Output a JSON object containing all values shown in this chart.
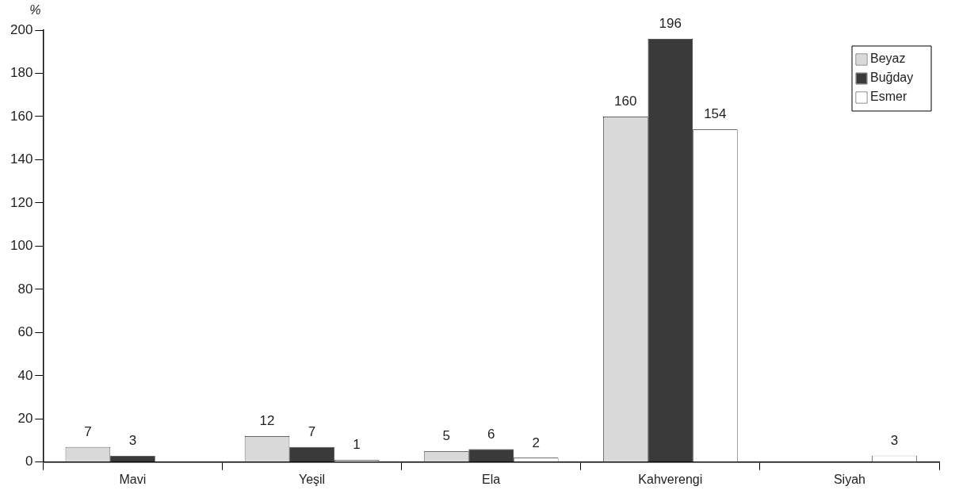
{
  "chart_data": {
    "type": "bar",
    "ylabel": "%",
    "categories": [
      "Mavi",
      "Yeşil",
      "Ela",
      "Kahverengi",
      "Siyah"
    ],
    "series": [
      {
        "name": "Beyaz",
        "color": "#d9d9d9",
        "values": [
          7,
          12,
          5,
          160,
          null
        ]
      },
      {
        "name": "Buğday",
        "color": "#3a3a3a",
        "values": [
          3,
          7,
          6,
          196,
          null
        ]
      },
      {
        "name": "Esmer",
        "color": "#ffffff",
        "values": [
          null,
          1,
          2,
          154,
          3
        ]
      }
    ],
    "ylim": [
      0,
      200
    ],
    "yticks": [
      0,
      20,
      40,
      60,
      80,
      100,
      120,
      140,
      160,
      180,
      200
    ],
    "grid": false,
    "legend": "top right",
    "data_labels": true
  }
}
